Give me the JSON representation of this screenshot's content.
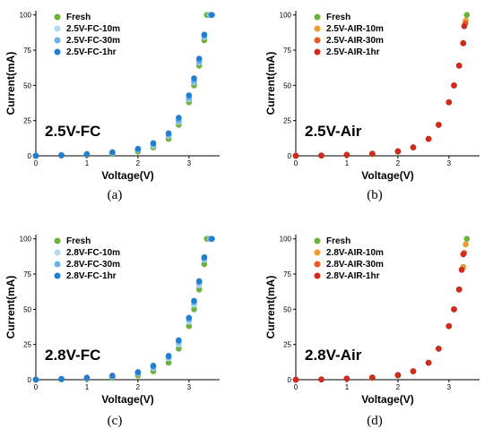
{
  "chart_data": [
    {
      "type": "scatter",
      "panel_label": "2.5V-FC",
      "caption": "(a)",
      "xlabel": "Voltage(V)",
      "ylabel": "Current(mA)",
      "xlim": [
        0,
        3.6
      ],
      "ylim": [
        0,
        103
      ],
      "xticks": [
        0,
        1,
        2,
        3
      ],
      "yticks": [
        0,
        25,
        50,
        75,
        100
      ],
      "legend_position": "top-left",
      "series": [
        {
          "name": "Fresh",
          "color": "#6bb536",
          "x": [
            0,
            0.5,
            1.0,
            1.5,
            2.0,
            2.3,
            2.6,
            2.8,
            3.0,
            3.1,
            3.2,
            3.3,
            3.35
          ],
          "y": [
            0,
            0.2,
            0.6,
            1.3,
            3.0,
            6,
            12,
            22,
            38,
            50,
            64,
            82,
            100
          ]
        },
        {
          "name": "2.5V-FC-10m",
          "color": "#aed8f5",
          "x": [
            0,
            0.5,
            1.0,
            1.5,
            2.0,
            2.3,
            2.6,
            2.8,
            3.0,
            3.1,
            3.2,
            3.3,
            3.4
          ],
          "y": [
            0,
            0.3,
            0.9,
            1.8,
            4.0,
            7,
            14,
            24,
            40,
            52,
            66,
            84,
            100
          ]
        },
        {
          "name": "2.5V-FC-30m",
          "color": "#64b5ee",
          "x": [
            0,
            0.5,
            1.0,
            1.5,
            2.0,
            2.3,
            2.6,
            2.8,
            3.0,
            3.1,
            3.2,
            3.3,
            3.42
          ],
          "y": [
            0,
            0.4,
            1.1,
            2.2,
            4.5,
            8,
            15,
            25,
            41,
            53,
            67,
            85,
            100
          ]
        },
        {
          "name": "2.5V-FC-1hr",
          "color": "#1f7fd6",
          "x": [
            0,
            0.5,
            1.0,
            1.5,
            2.0,
            2.3,
            2.6,
            2.8,
            3.0,
            3.1,
            3.2,
            3.3,
            3.45
          ],
          "y": [
            0,
            0.5,
            1.3,
            2.6,
            5.0,
            9,
            16,
            27,
            43,
            55,
            69,
            86,
            100
          ]
        }
      ]
    },
    {
      "type": "scatter",
      "panel_label": "2.5V-Air",
      "caption": "(b)",
      "xlabel": "Voltage(V)",
      "ylabel": "Current(mA)",
      "xlim": [
        0,
        3.6
      ],
      "ylim": [
        0,
        103
      ],
      "xticks": [
        0,
        1,
        2,
        3
      ],
      "yticks": [
        0,
        25,
        50,
        75,
        100
      ],
      "legend_position": "top-left",
      "series": [
        {
          "name": "Fresh",
          "color": "#6bb536",
          "x": [
            0,
            0.5,
            1.0,
            1.5,
            2.0,
            2.3,
            2.6,
            2.8,
            3.0,
            3.1,
            3.2,
            3.28,
            3.35
          ],
          "y": [
            0,
            0.2,
            0.6,
            1.3,
            3.0,
            6,
            12,
            22,
            38,
            50,
            64,
            80,
            100
          ]
        },
        {
          "name": "2.5V-AIR-10m",
          "color": "#f39c2d",
          "x": [
            0,
            0.5,
            1.0,
            1.5,
            2.0,
            2.3,
            2.6,
            2.8,
            3.0,
            3.1,
            3.2,
            3.28,
            3.33
          ],
          "y": [
            0,
            0.2,
            0.7,
            1.4,
            3.2,
            6,
            12,
            22,
            38,
            50,
            64,
            80,
            96
          ]
        },
        {
          "name": "2.5V-AIR-30m",
          "color": "#ec5a22",
          "x": [
            0,
            0.5,
            1.0,
            1.5,
            2.0,
            2.3,
            2.6,
            2.8,
            3.0,
            3.1,
            3.2,
            3.28,
            3.32
          ],
          "y": [
            0,
            0.2,
            0.7,
            1.4,
            3.2,
            6,
            12,
            22,
            38,
            50,
            64,
            80,
            94
          ]
        },
        {
          "name": "2.5V-AIR-1hr",
          "color": "#d42a1e",
          "x": [
            0,
            0.5,
            1.0,
            1.5,
            2.0,
            2.3,
            2.6,
            2.8,
            3.0,
            3.1,
            3.2,
            3.28,
            3.3
          ],
          "y": [
            0,
            0.2,
            0.7,
            1.5,
            3.3,
            6,
            12,
            22,
            38,
            50,
            64,
            80,
            92
          ]
        }
      ]
    },
    {
      "type": "scatter",
      "panel_label": "2.8V-FC",
      "caption": "(c)",
      "xlabel": "Voltage(V)",
      "ylabel": "Current(mA)",
      "xlim": [
        0,
        3.6
      ],
      "ylim": [
        0,
        103
      ],
      "xticks": [
        0,
        1,
        2,
        3
      ],
      "yticks": [
        0,
        25,
        50,
        75,
        100
      ],
      "legend_position": "top-left",
      "series": [
        {
          "name": "Fresh",
          "color": "#6bb536",
          "x": [
            0,
            0.5,
            1.0,
            1.5,
            2.0,
            2.3,
            2.6,
            2.8,
            3.0,
            3.1,
            3.2,
            3.3,
            3.35
          ],
          "y": [
            0,
            0.2,
            0.6,
            1.3,
            3.0,
            6,
            12,
            22,
            38,
            50,
            64,
            82,
            100
          ]
        },
        {
          "name": "2.8V-FC-10m",
          "color": "#aed8f5",
          "x": [
            0,
            0.5,
            1.0,
            1.5,
            2.0,
            2.3,
            2.6,
            2.8,
            3.0,
            3.1,
            3.2,
            3.3,
            3.4
          ],
          "y": [
            0,
            0.4,
            1.0,
            2.0,
            4.2,
            8,
            15,
            25,
            41,
            53,
            67,
            85,
            100
          ]
        },
        {
          "name": "2.8V-FC-30m",
          "color": "#64b5ee",
          "x": [
            0,
            0.5,
            1.0,
            1.5,
            2.0,
            2.3,
            2.6,
            2.8,
            3.0,
            3.1,
            3.2,
            3.3,
            3.42
          ],
          "y": [
            0,
            0.5,
            1.3,
            2.5,
            4.8,
            9,
            16,
            27,
            43,
            55,
            69,
            86,
            100
          ]
        },
        {
          "name": "2.8V-FC-1hr",
          "color": "#1f7fd6",
          "x": [
            0,
            0.5,
            1.0,
            1.5,
            2.0,
            2.3,
            2.6,
            2.8,
            3.0,
            3.1,
            3.2,
            3.3,
            3.45
          ],
          "y": [
            0,
            0.6,
            1.5,
            2.9,
            5.4,
            10,
            17,
            28,
            44,
            56,
            70,
            87,
            100
          ]
        }
      ]
    },
    {
      "type": "scatter",
      "panel_label": "2.8V-Air",
      "caption": "(d)",
      "xlabel": "Voltage(V)",
      "ylabel": "Current(mA)",
      "xlim": [
        0,
        3.6
      ],
      "ylim": [
        0,
        103
      ],
      "xticks": [
        0,
        1,
        2,
        3
      ],
      "yticks": [
        0,
        25,
        50,
        75,
        100
      ],
      "legend_position": "top-left",
      "series": [
        {
          "name": "Fresh",
          "color": "#6bb536",
          "x": [
            0,
            0.5,
            1.0,
            1.5,
            2.0,
            2.3,
            2.6,
            2.8,
            3.0,
            3.1,
            3.2,
            3.28,
            3.35
          ],
          "y": [
            0,
            0.2,
            0.6,
            1.3,
            3.0,
            6,
            12,
            22,
            38,
            50,
            64,
            80,
            100
          ]
        },
        {
          "name": "2.8V-AIR-10m",
          "color": "#f39c2d",
          "x": [
            0,
            0.5,
            1.0,
            1.5,
            2.0,
            2.3,
            2.6,
            2.8,
            3.0,
            3.1,
            3.2,
            3.28,
            3.33
          ],
          "y": [
            0,
            0.2,
            0.7,
            1.4,
            3.2,
            6,
            12,
            22,
            38,
            50,
            64,
            80,
            96
          ]
        },
        {
          "name": "2.8V-AIR-30m",
          "color": "#ec5a22",
          "x": [
            0,
            0.5,
            1.0,
            1.5,
            2.0,
            2.3,
            2.6,
            2.8,
            3.0,
            3.1,
            3.2,
            3.25,
            3.3
          ],
          "y": [
            0,
            0.2,
            0.7,
            1.5,
            3.3,
            6,
            12,
            22,
            38,
            50,
            64,
            78,
            90
          ]
        },
        {
          "name": "2.8V-AIR-1hr",
          "color": "#d42a1e",
          "x": [
            0,
            0.5,
            1.0,
            1.5,
            2.0,
            2.3,
            2.6,
            2.8,
            3.0,
            3.1,
            3.2,
            3.25,
            3.28
          ],
          "y": [
            0,
            0.2,
            0.8,
            1.6,
            3.4,
            6,
            12,
            22,
            38,
            50,
            64,
            78,
            89
          ]
        }
      ]
    }
  ]
}
